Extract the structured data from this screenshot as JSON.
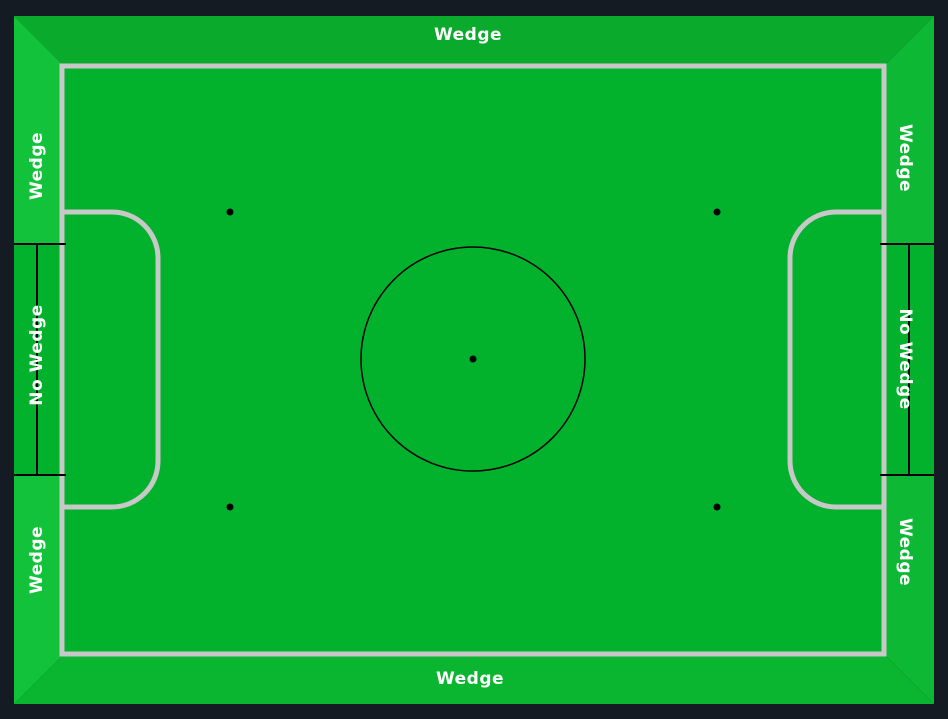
{
  "zones": {
    "top_wedge": "Wedge",
    "bottom_wedge": "Wedge",
    "left_upper_wedge": "Wedge",
    "left_lower_wedge": "Wedge",
    "right_upper_wedge": "Wedge",
    "right_lower_wedge": "Wedge",
    "left_goal_zone": "No Wedge",
    "right_goal_zone": "No Wedge"
  },
  "colors": {
    "outer_frame": "#151b22",
    "wedge_top": "#0aaa2c",
    "wedge_bottom": "#0ab52f",
    "wedge_left": "#12c23a",
    "wedge_right": "#0cb834",
    "playing_surface": "#02b12c",
    "lines": "#c8c8c8",
    "markings": "#000000",
    "label_text": "#ffffff"
  }
}
